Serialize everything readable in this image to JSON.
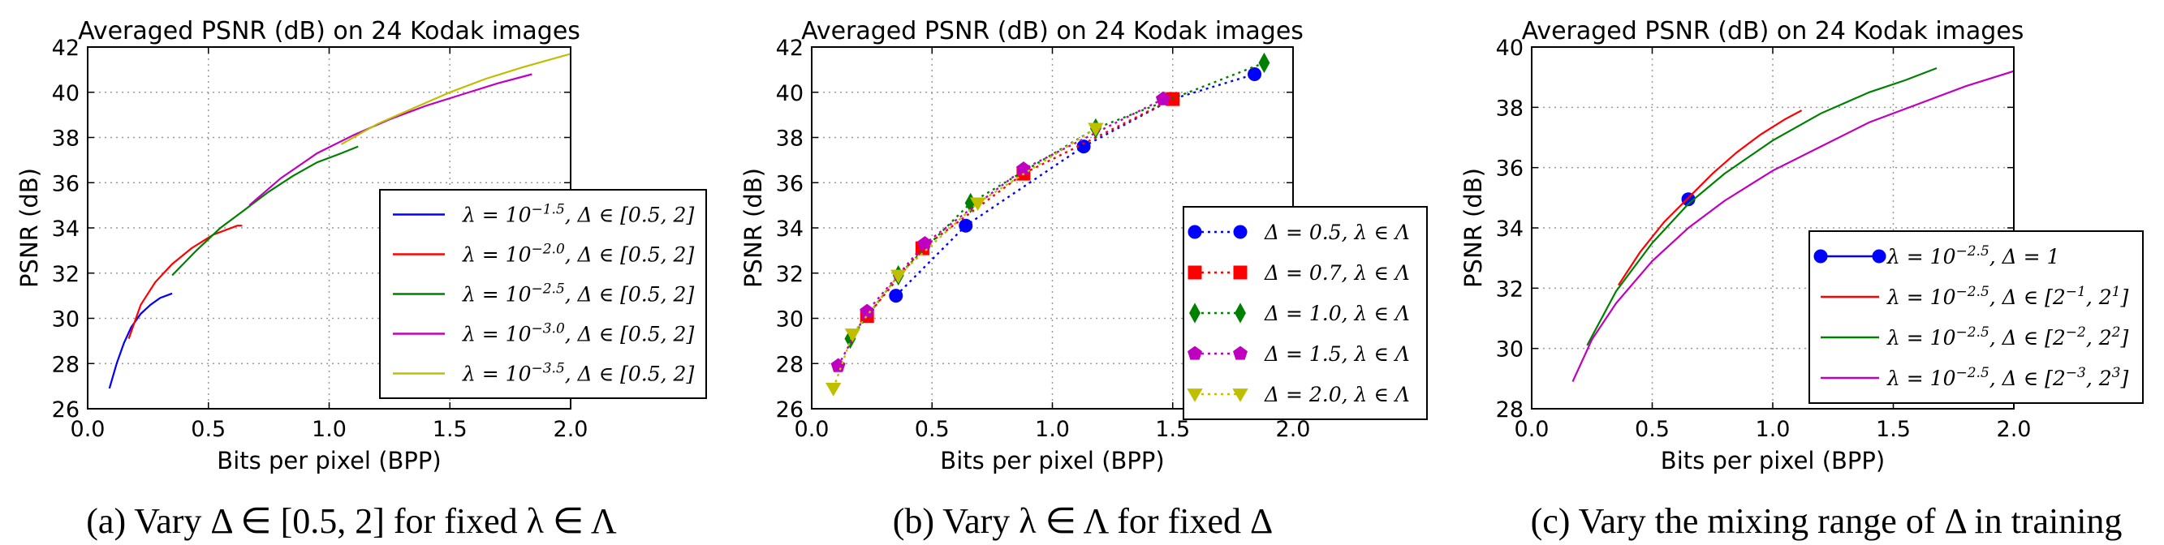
{
  "chart_data": [
    {
      "type": "line",
      "title": "Averaged PSNR (dB) on 24 Kodak images",
      "xlabel": "Bits per pixel (BPP)",
      "ylabel": "PSNR (dB)",
      "xlim": [
        0.0,
        2.0
      ],
      "ylim": [
        26,
        42
      ],
      "xticks": [
        "0.0",
        "0.5",
        "1.0",
        "1.5",
        "2.0"
      ],
      "yticks": [
        "26",
        "28",
        "30",
        "32",
        "34",
        "36",
        "38",
        "40",
        "42"
      ],
      "grid": true,
      "legend_position": "lower right",
      "caption": "(a) Vary Δ ∈ [0.5, 2] for fixed λ ∈ Λ",
      "series": [
        {
          "name": "λ = 10^{−1.5}, Δ ∈ [0.5, 2]",
          "color": "#0000ff",
          "x": [
            0.09,
            0.12,
            0.15,
            0.18,
            0.22,
            0.26,
            0.3,
            0.35
          ],
          "y": [
            26.9,
            28.0,
            28.9,
            29.6,
            30.2,
            30.6,
            30.9,
            31.1
          ]
        },
        {
          "name": "λ = 10^{−2.0}, Δ ∈ [0.5, 2]",
          "color": "#ff0000",
          "x": [
            0.17,
            0.22,
            0.28,
            0.35,
            0.43,
            0.52,
            0.62,
            0.64
          ],
          "y": [
            29.1,
            30.6,
            31.6,
            32.4,
            33.1,
            33.7,
            34.1,
            34.1
          ]
        },
        {
          "name": "λ = 10^{−2.5}, Δ ∈ [0.5, 2]",
          "color": "#008000",
          "x": [
            0.35,
            0.45,
            0.55,
            0.65,
            0.75,
            0.85,
            0.95,
            1.05,
            1.12
          ],
          "y": [
            31.9,
            33.0,
            34.0,
            34.8,
            35.6,
            36.3,
            36.9,
            37.3,
            37.6
          ]
        },
        {
          "name": "λ = 10^{−3.0}, Δ ∈ [0.5, 2]",
          "color": "#bf00bf",
          "x": [
            0.67,
            0.8,
            0.95,
            1.1,
            1.25,
            1.4,
            1.55,
            1.7,
            1.84
          ],
          "y": [
            35.0,
            36.2,
            37.3,
            38.1,
            38.8,
            39.4,
            39.9,
            40.4,
            40.8
          ]
        },
        {
          "name": "λ = 10^{−3.5}, Δ ∈ [0.5, 2]",
          "color": "#bfbf00",
          "x": [
            1.05,
            1.2,
            1.35,
            1.5,
            1.65,
            1.8,
            1.9,
            2.0
          ],
          "y": [
            37.7,
            38.6,
            39.3,
            40.0,
            40.6,
            41.1,
            41.4,
            41.7
          ]
        }
      ]
    },
    {
      "type": "line",
      "title": "Averaged PSNR (dB) on 24 Kodak images",
      "xlabel": "Bits per pixel (BPP)",
      "ylabel": "PSNR (dB)",
      "xlim": [
        0.0,
        2.0
      ],
      "ylim": [
        26,
        42
      ],
      "xticks": [
        "0.0",
        "0.5",
        "1.0",
        "1.5",
        "2.0"
      ],
      "yticks": [
        "26",
        "28",
        "30",
        "32",
        "34",
        "36",
        "38",
        "40",
        "42"
      ],
      "grid": true,
      "legend_position": "lower right",
      "caption": "(b) Vary λ ∈ Λ for fixed Δ",
      "series": [
        {
          "name": "Δ = 0.5, λ ∈ Λ",
          "color": "#0000ff",
          "marker": "circle",
          "x": [
            0.35,
            0.64,
            1.13,
            1.5,
            1.84
          ],
          "y": [
            31.0,
            34.1,
            37.6,
            39.7,
            40.8
          ]
        },
        {
          "name": "Δ = 0.7, λ ∈ Λ",
          "color": "#ff0000",
          "marker": "square",
          "x": [
            0.23,
            0.46,
            0.88,
            1.5
          ],
          "y": [
            30.1,
            33.1,
            36.4,
            39.7
          ]
        },
        {
          "name": "Δ = 1.0, λ ∈ Λ",
          "color": "#008000",
          "marker": "diamond",
          "x": [
            0.16,
            0.36,
            0.66,
            1.18,
            1.88
          ],
          "y": [
            29.1,
            31.9,
            35.1,
            38.4,
            41.3
          ]
        },
        {
          "name": "Δ = 1.5, λ ∈ Λ",
          "color": "#bf00bf",
          "marker": "pentagon",
          "x": [
            0.11,
            0.23,
            0.47,
            0.88,
            1.46
          ],
          "y": [
            27.9,
            30.3,
            33.3,
            36.6,
            39.7
          ]
        },
        {
          "name": "Δ = 2.0, λ ∈ Λ",
          "color": "#bfbf00",
          "marker": "triangle-down",
          "x": [
            0.09,
            0.17,
            0.36,
            0.69,
            1.18
          ],
          "y": [
            26.9,
            29.3,
            31.9,
            35.1,
            38.4
          ]
        }
      ]
    },
    {
      "type": "line",
      "title": "Averaged PSNR (dB) on 24 Kodak images",
      "xlabel": "Bits per pixel (BPP)",
      "ylabel": "PSNR (dB)",
      "xlim": [
        0.0,
        2.0
      ],
      "ylim": [
        28,
        40
      ],
      "xticks": [
        "0.0",
        "0.5",
        "1.0",
        "1.5",
        "2.0"
      ],
      "yticks": [
        "28",
        "30",
        "32",
        "34",
        "36",
        "38",
        "40"
      ],
      "grid": true,
      "legend_position": "lower right",
      "caption": "(c) Vary the mixing range of Δ in training",
      "series": [
        {
          "name": "λ = 10^{−2.5}, Δ = 1",
          "color": "#0000ff",
          "marker": "circle",
          "x": [
            0.65
          ],
          "y": [
            34.95
          ]
        },
        {
          "name": "λ = 10^{−2.5}, Δ ∈ [2^{−1}, 2^1]",
          "color": "#ff0000",
          "x": [
            0.36,
            0.45,
            0.55,
            0.65,
            0.75,
            0.85,
            0.95,
            1.05,
            1.12
          ],
          "y": [
            32.1,
            33.2,
            34.2,
            35.0,
            35.8,
            36.5,
            37.1,
            37.6,
            37.9
          ]
        },
        {
          "name": "λ = 10^{−2.5}, Δ ∈ [2^{−2}, 2^2]",
          "color": "#008000",
          "x": [
            0.23,
            0.35,
            0.5,
            0.65,
            0.8,
            1.0,
            1.2,
            1.4,
            1.55,
            1.68
          ],
          "y": [
            30.1,
            31.9,
            33.5,
            34.8,
            35.8,
            36.9,
            37.8,
            38.5,
            38.9,
            39.3
          ]
        },
        {
          "name": "λ = 10^{−2.5}, Δ ∈ [2^{−3}, 2^3]",
          "color": "#bf00bf",
          "x": [
            0.17,
            0.25,
            0.35,
            0.5,
            0.65,
            0.8,
            1.0,
            1.2,
            1.4,
            1.6,
            1.8,
            2.0
          ],
          "y": [
            28.9,
            30.3,
            31.5,
            32.9,
            34.0,
            34.9,
            35.9,
            36.7,
            37.5,
            38.1,
            38.7,
            39.2
          ]
        }
      ]
    }
  ]
}
